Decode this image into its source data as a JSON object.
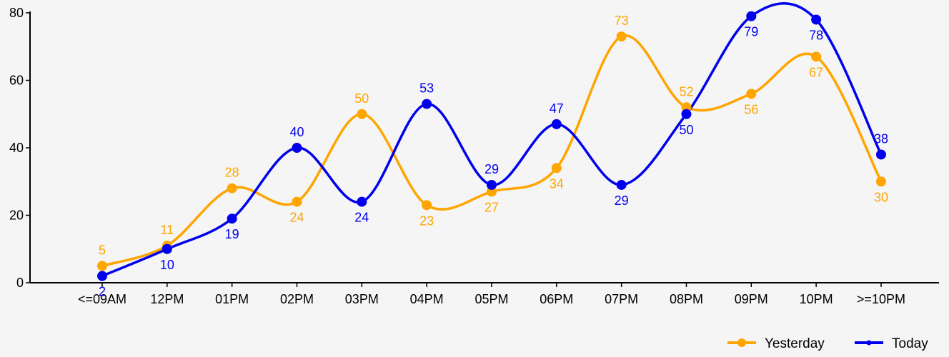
{
  "chart_data": {
    "type": "line",
    "categories": [
      "<=09AM",
      "12PM",
      "01PM",
      "02PM",
      "03PM",
      "04PM",
      "05PM",
      "06PM",
      "07PM",
      "08PM",
      "09PM",
      "10PM",
      ">=10PM"
    ],
    "series": [
      {
        "name": "Yesterday",
        "color": "#FFA500",
        "values": [
          5,
          11,
          28,
          24,
          50,
          23,
          27,
          34,
          73,
          52,
          56,
          67,
          30
        ]
      },
      {
        "name": "Today",
        "color": "#0000EE",
        "values": [
          2,
          10,
          19,
          40,
          24,
          53,
          29,
          47,
          29,
          50,
          79,
          78,
          38
        ]
      }
    ],
    "yticks": [
      0,
      20,
      40,
      60,
      80
    ],
    "ylim": [
      0,
      80
    ],
    "smooth": true,
    "grid": false,
    "legend_position": "bottom-right"
  }
}
